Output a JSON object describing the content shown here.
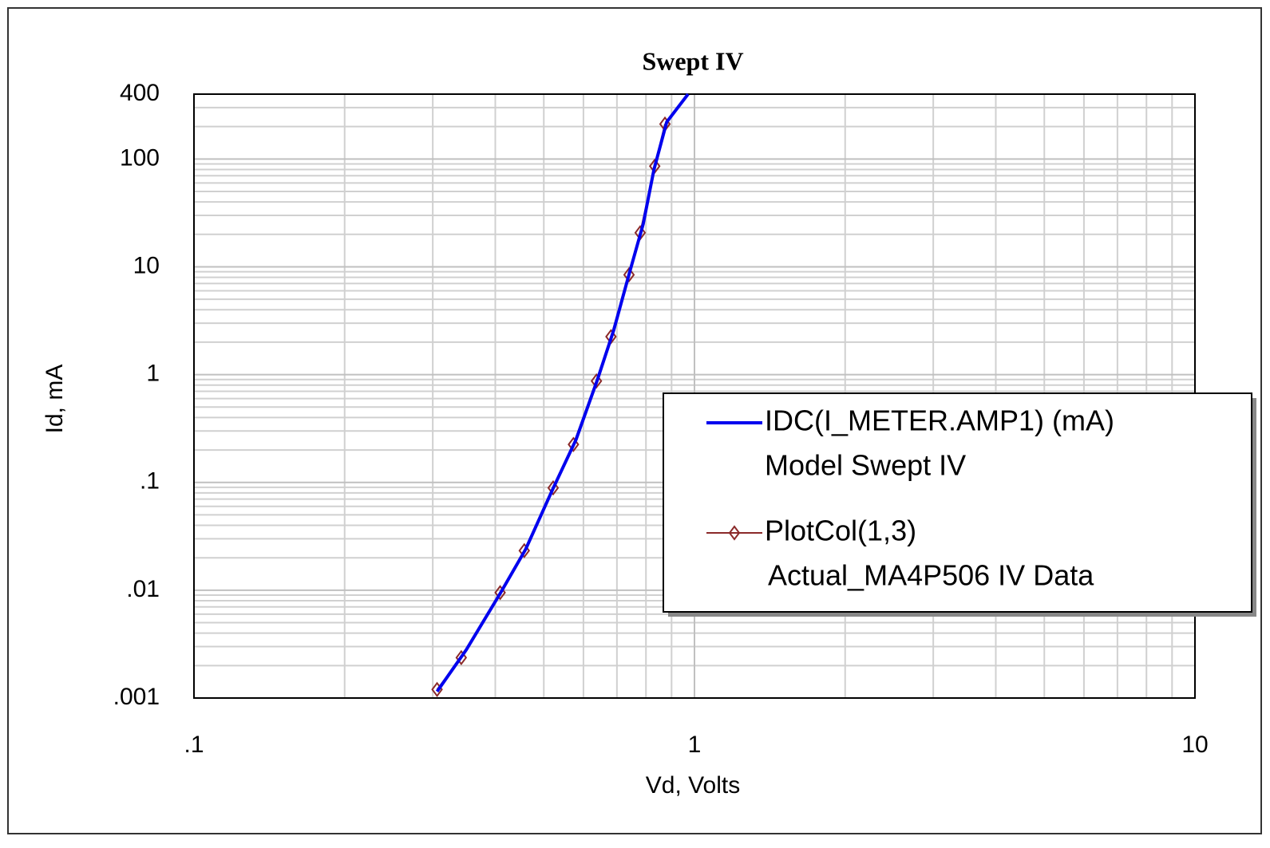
{
  "chart_data": {
    "type": "line",
    "title": "Swept IV",
    "x_label": "Vd, Volts",
    "y_label": "Id, mA",
    "log_x": true,
    "log_y": true,
    "grid": true,
    "xlim": [
      0.1,
      10
    ],
    "ylim": [
      0.001,
      400
    ],
    "xticks": [
      {
        "value": 0.1,
        "label": ".1"
      },
      1,
      10
    ],
    "yticks": [
      {
        "value": 0.001,
        "label": ".001"
      },
      {
        "value": 0.01,
        "label": ".01"
      },
      {
        "value": 0.1,
        "label": ".1"
      },
      1,
      10,
      100,
      400
    ],
    "xminorticks": [
      0.2,
      0.3,
      0.4,
      0.5,
      0.6,
      0.7,
      0.8,
      0.9,
      2,
      3,
      4,
      5,
      6,
      7,
      8,
      9
    ],
    "yminorticks": [
      0.002,
      0.003,
      0.004,
      0.005,
      0.006,
      0.007,
      0.008,
      0.009,
      0.02,
      0.03,
      0.04,
      0.05,
      0.06,
      0.07,
      0.08,
      0.09,
      0.2,
      0.3,
      0.4,
      0.5,
      0.6,
      0.7,
      0.8,
      0.9,
      2,
      3,
      4,
      5,
      6,
      7,
      8,
      9,
      20,
      30,
      40,
      50,
      60,
      70,
      80,
      90,
      200,
      300
    ],
    "legend_position": "right",
    "series": [
      {
        "name": "IDC(I_METER.AMP1) (mA)",
        "description": "Model Swept IV",
        "color": "#0000ee",
        "marker": "none",
        "x": [
          0.306,
          0.35,
          0.41,
          0.46,
          0.52,
          0.58,
          0.64,
          0.69,
          0.74,
          0.79,
          0.83,
          0.88,
          0.971
        ],
        "values": [
          0.00115,
          0.0028,
          0.0095,
          0.024,
          0.085,
          0.25,
          0.9,
          2.6,
          8.5,
          25,
          80,
          220,
          400
        ]
      },
      {
        "name": "PlotCol(1,3)",
        "description": "Actual_MA4P506 IV Data",
        "color": "#8b2a2a",
        "marker": "diamond",
        "x": [
          0.306,
          0.342,
          0.409,
          0.457,
          0.522,
          0.573,
          0.637,
          0.681,
          0.74,
          0.779,
          0.833,
          0.873
        ],
        "values": [
          0.0012,
          0.00237,
          0.0095,
          0.0233,
          0.089,
          0.225,
          0.873,
          2.25,
          8.44,
          20.7,
          85.9,
          211
        ]
      }
    ]
  }
}
